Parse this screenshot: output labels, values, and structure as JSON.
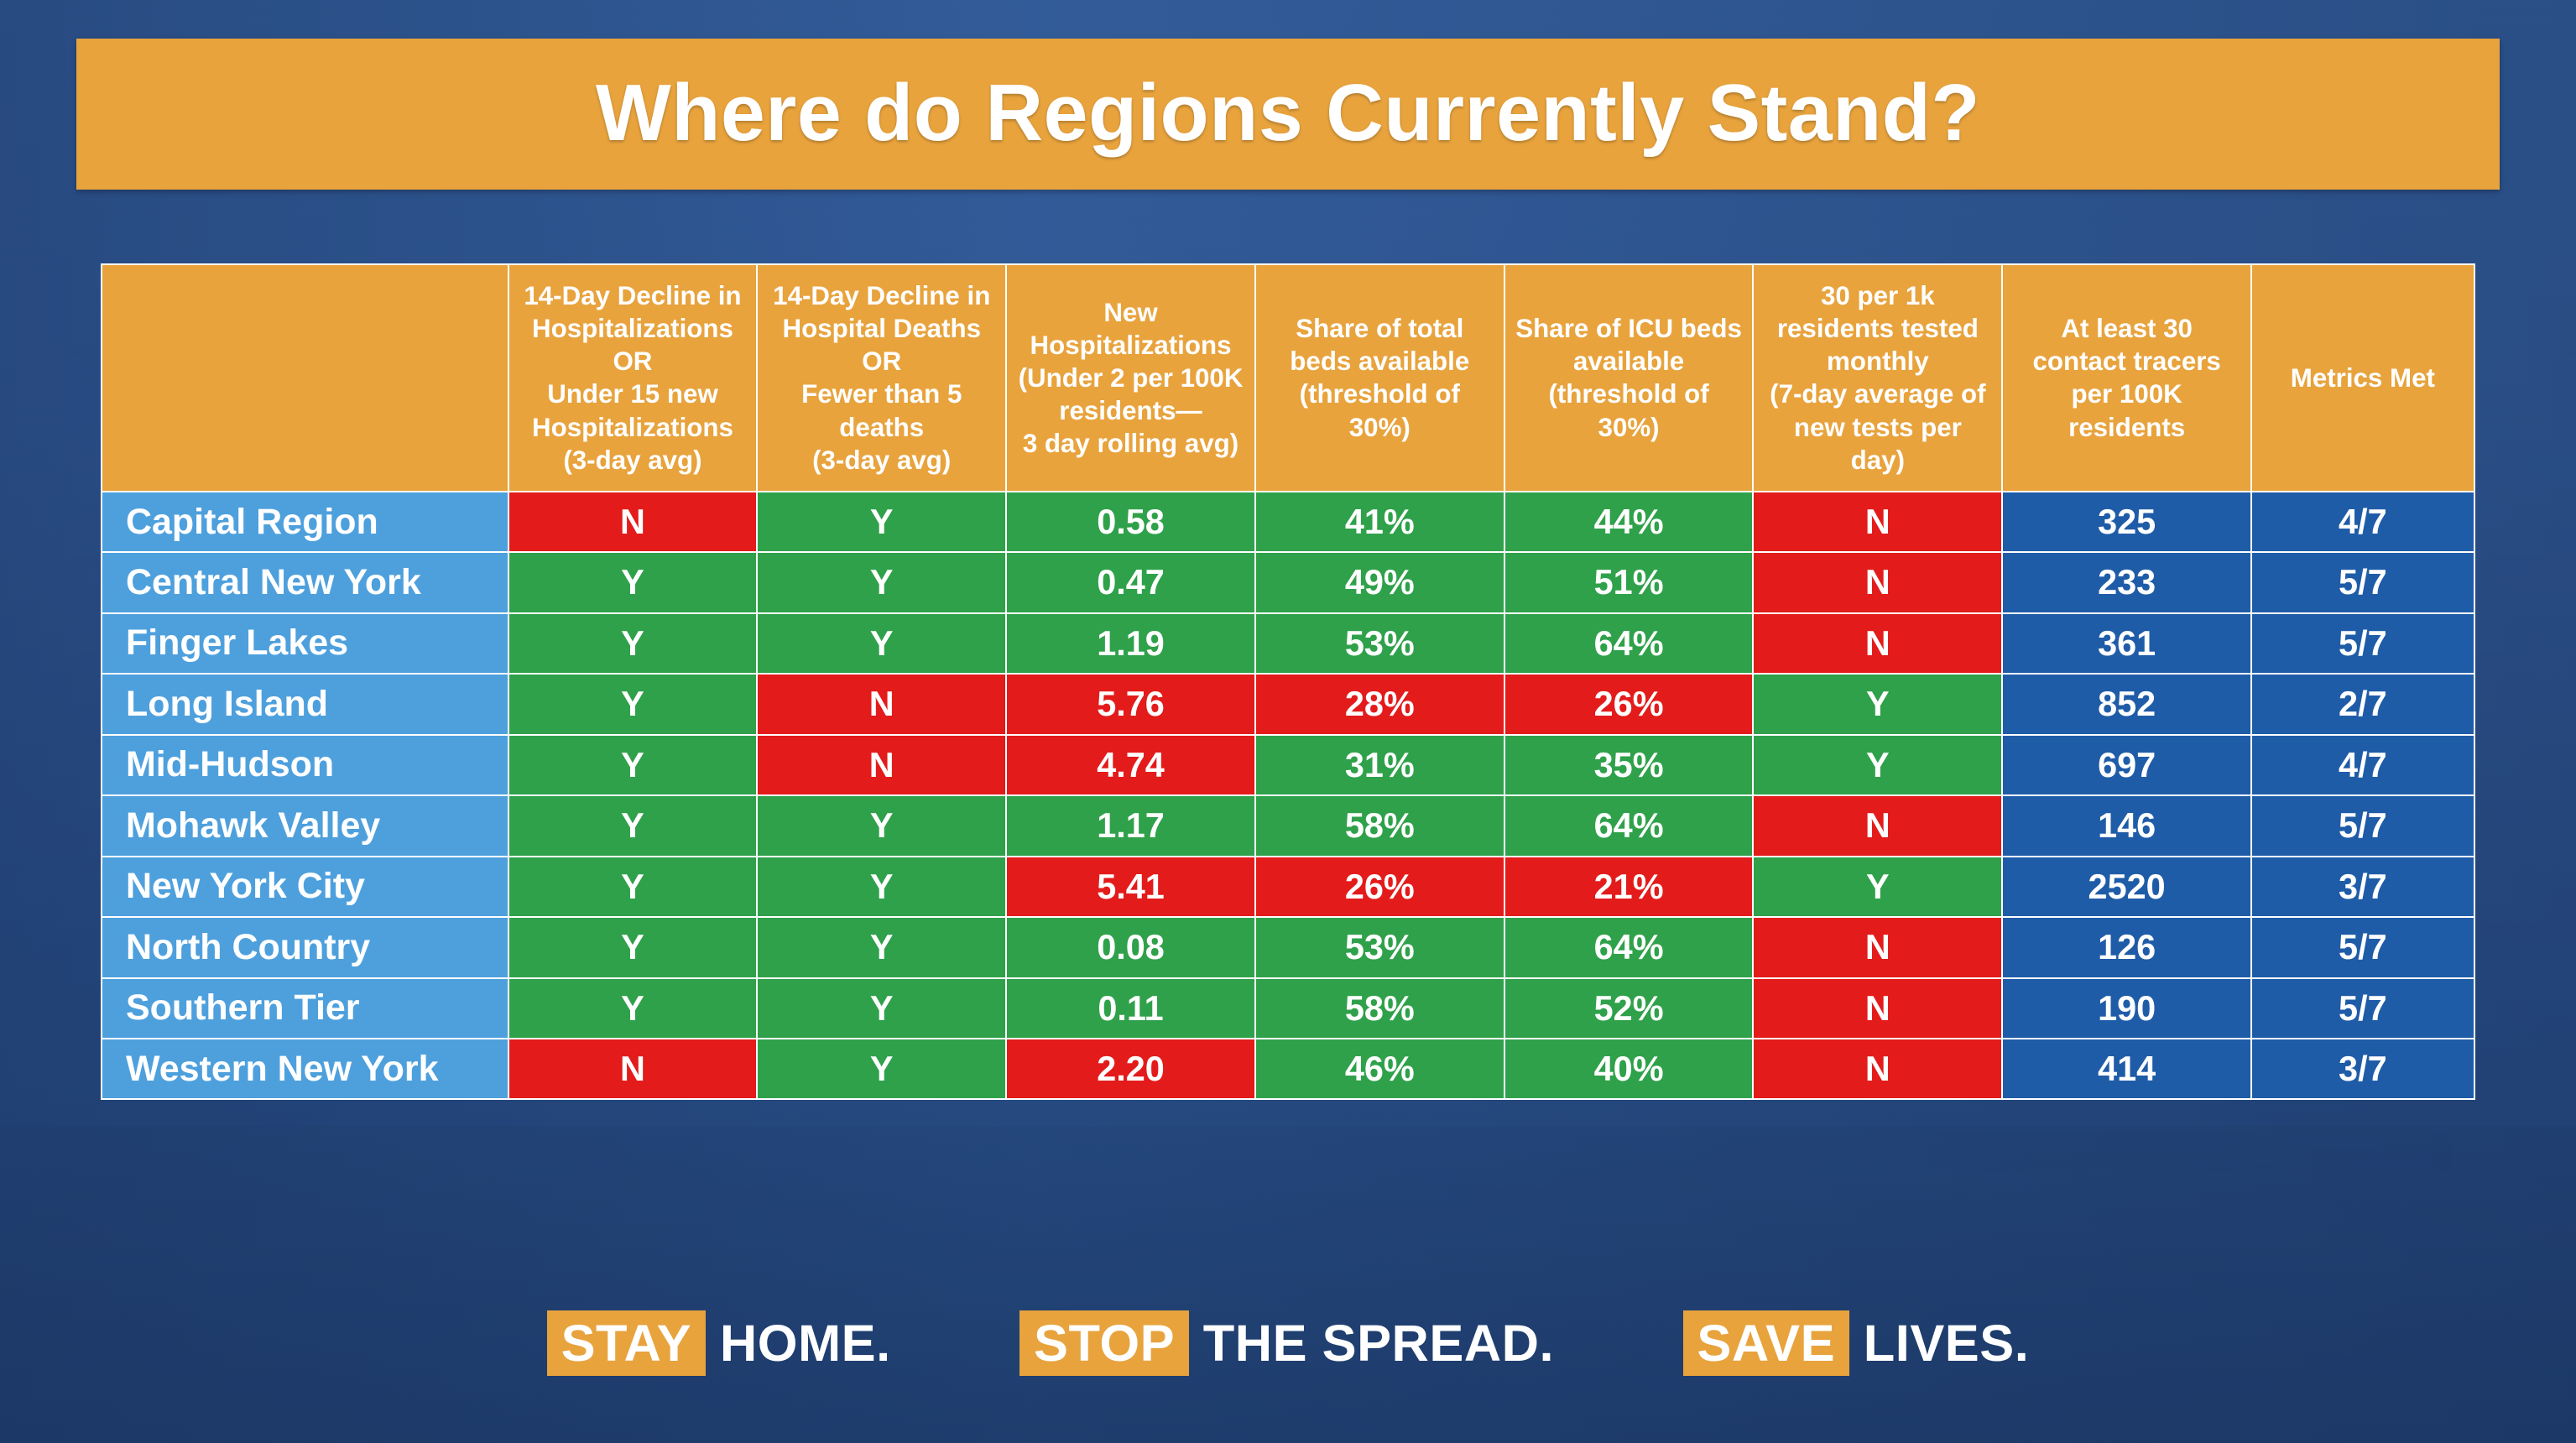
{
  "title": "Where do Regions Currently Stand?",
  "colors": {
    "title_bg": "#e8a33d",
    "header_bg": "#e8a33d",
    "region_bg": "#4ea0dd",
    "pass_bg": "#2fa14a",
    "fail_bg": "#e31b1b",
    "neutral_bg": "#1f5ca8",
    "border": "#ffffff",
    "text": "#ffffff"
  },
  "typography": {
    "title_fontsize_vw": 3.1,
    "header_fontsize_vw": 1.02,
    "cell_fontsize_vw": 1.35,
    "region_fontsize_vw": 1.4,
    "slogan_fontsize_vw": 2.0,
    "font_family": "Helvetica Neue, Arial, sans-serif",
    "weight_bold": 800
  },
  "table": {
    "type": "table",
    "columns": [
      "",
      "14-Day Decline in Hospitalizations\nOR\nUnder 15 new Hospitalizations\n(3-day avg)",
      "14-Day Decline in Hospital Deaths\nOR\nFewer than 5 deaths\n(3-day avg)",
      "New Hospitalizations\n(Under 2 per 100K residents—\n3 day rolling avg)",
      "Share of total beds available\n(threshold of 30%)",
      "Share of ICU beds available\n(threshold of\n30%)",
      "30 per 1k residents tested monthly\n(7-day average of new tests per day)",
      "At least 30 contact tracers per 100K residents",
      "Metrics Met"
    ],
    "rows": [
      {
        "region": "Capital Region",
        "cells": [
          {
            "v": "N",
            "s": "fail"
          },
          {
            "v": "Y",
            "s": "pass"
          },
          {
            "v": "0.58",
            "s": "pass"
          },
          {
            "v": "41%",
            "s": "pass"
          },
          {
            "v": "44%",
            "s": "pass"
          },
          {
            "v": "N",
            "s": "fail"
          },
          {
            "v": "325",
            "s": "neutral"
          },
          {
            "v": "4/7",
            "s": "neutral"
          }
        ]
      },
      {
        "region": "Central New York",
        "cells": [
          {
            "v": "Y",
            "s": "pass"
          },
          {
            "v": "Y",
            "s": "pass"
          },
          {
            "v": "0.47",
            "s": "pass"
          },
          {
            "v": "49%",
            "s": "pass"
          },
          {
            "v": "51%",
            "s": "pass"
          },
          {
            "v": "N",
            "s": "fail"
          },
          {
            "v": "233",
            "s": "neutral"
          },
          {
            "v": "5/7",
            "s": "neutral"
          }
        ]
      },
      {
        "region": "Finger Lakes",
        "cells": [
          {
            "v": "Y",
            "s": "pass"
          },
          {
            "v": "Y",
            "s": "pass"
          },
          {
            "v": "1.19",
            "s": "pass"
          },
          {
            "v": "53%",
            "s": "pass"
          },
          {
            "v": "64%",
            "s": "pass"
          },
          {
            "v": "N",
            "s": "fail"
          },
          {
            "v": "361",
            "s": "neutral"
          },
          {
            "v": "5/7",
            "s": "neutral"
          }
        ]
      },
      {
        "region": "Long Island",
        "cells": [
          {
            "v": "Y",
            "s": "pass"
          },
          {
            "v": "N",
            "s": "fail"
          },
          {
            "v": "5.76",
            "s": "fail"
          },
          {
            "v": "28%",
            "s": "fail"
          },
          {
            "v": "26%",
            "s": "fail"
          },
          {
            "v": "Y",
            "s": "pass"
          },
          {
            "v": "852",
            "s": "neutral"
          },
          {
            "v": "2/7",
            "s": "neutral"
          }
        ]
      },
      {
        "region": "Mid-Hudson",
        "cells": [
          {
            "v": "Y",
            "s": "pass"
          },
          {
            "v": "N",
            "s": "fail"
          },
          {
            "v": "4.74",
            "s": "fail"
          },
          {
            "v": "31%",
            "s": "pass"
          },
          {
            "v": "35%",
            "s": "pass"
          },
          {
            "v": "Y",
            "s": "pass"
          },
          {
            "v": "697",
            "s": "neutral"
          },
          {
            "v": "4/7",
            "s": "neutral"
          }
        ]
      },
      {
        "region": "Mohawk Valley",
        "cells": [
          {
            "v": "Y",
            "s": "pass"
          },
          {
            "v": "Y",
            "s": "pass"
          },
          {
            "v": "1.17",
            "s": "pass"
          },
          {
            "v": "58%",
            "s": "pass"
          },
          {
            "v": "64%",
            "s": "pass"
          },
          {
            "v": "N",
            "s": "fail"
          },
          {
            "v": "146",
            "s": "neutral"
          },
          {
            "v": "5/7",
            "s": "neutral"
          }
        ]
      },
      {
        "region": "New York City",
        "cells": [
          {
            "v": "Y",
            "s": "pass"
          },
          {
            "v": "Y",
            "s": "pass"
          },
          {
            "v": "5.41",
            "s": "fail"
          },
          {
            "v": "26%",
            "s": "fail"
          },
          {
            "v": "21%",
            "s": "fail"
          },
          {
            "v": "Y",
            "s": "pass"
          },
          {
            "v": "2520",
            "s": "neutral"
          },
          {
            "v": "3/7",
            "s": "neutral"
          }
        ]
      },
      {
        "region": "North Country",
        "cells": [
          {
            "v": "Y",
            "s": "pass"
          },
          {
            "v": "Y",
            "s": "pass"
          },
          {
            "v": "0.08",
            "s": "pass"
          },
          {
            "v": "53%",
            "s": "pass"
          },
          {
            "v": "64%",
            "s": "pass"
          },
          {
            "v": "N",
            "s": "fail"
          },
          {
            "v": "126",
            "s": "neutral"
          },
          {
            "v": "5/7",
            "s": "neutral"
          }
        ]
      },
      {
        "region": "Southern Tier",
        "cells": [
          {
            "v": "Y",
            "s": "pass"
          },
          {
            "v": "Y",
            "s": "pass"
          },
          {
            "v": "0.11",
            "s": "pass"
          },
          {
            "v": "58%",
            "s": "pass"
          },
          {
            "v": "52%",
            "s": "pass"
          },
          {
            "v": "N",
            "s": "fail"
          },
          {
            "v": "190",
            "s": "neutral"
          },
          {
            "v": "5/7",
            "s": "neutral"
          }
        ]
      },
      {
        "region": "Western New York",
        "cells": [
          {
            "v": "N",
            "s": "fail"
          },
          {
            "v": "Y",
            "s": "pass"
          },
          {
            "v": "2.20",
            "s": "fail"
          },
          {
            "v": "46%",
            "s": "pass"
          },
          {
            "v": "40%",
            "s": "pass"
          },
          {
            "v": "N",
            "s": "fail"
          },
          {
            "v": "414",
            "s": "neutral"
          },
          {
            "v": "3/7",
            "s": "neutral"
          }
        ]
      }
    ]
  },
  "footer": {
    "slogans": [
      {
        "highlight": "STAY",
        "rest": "HOME."
      },
      {
        "highlight": "STOP",
        "rest": "THE SPREAD."
      },
      {
        "highlight": "SAVE",
        "rest": "LIVES."
      }
    ]
  }
}
